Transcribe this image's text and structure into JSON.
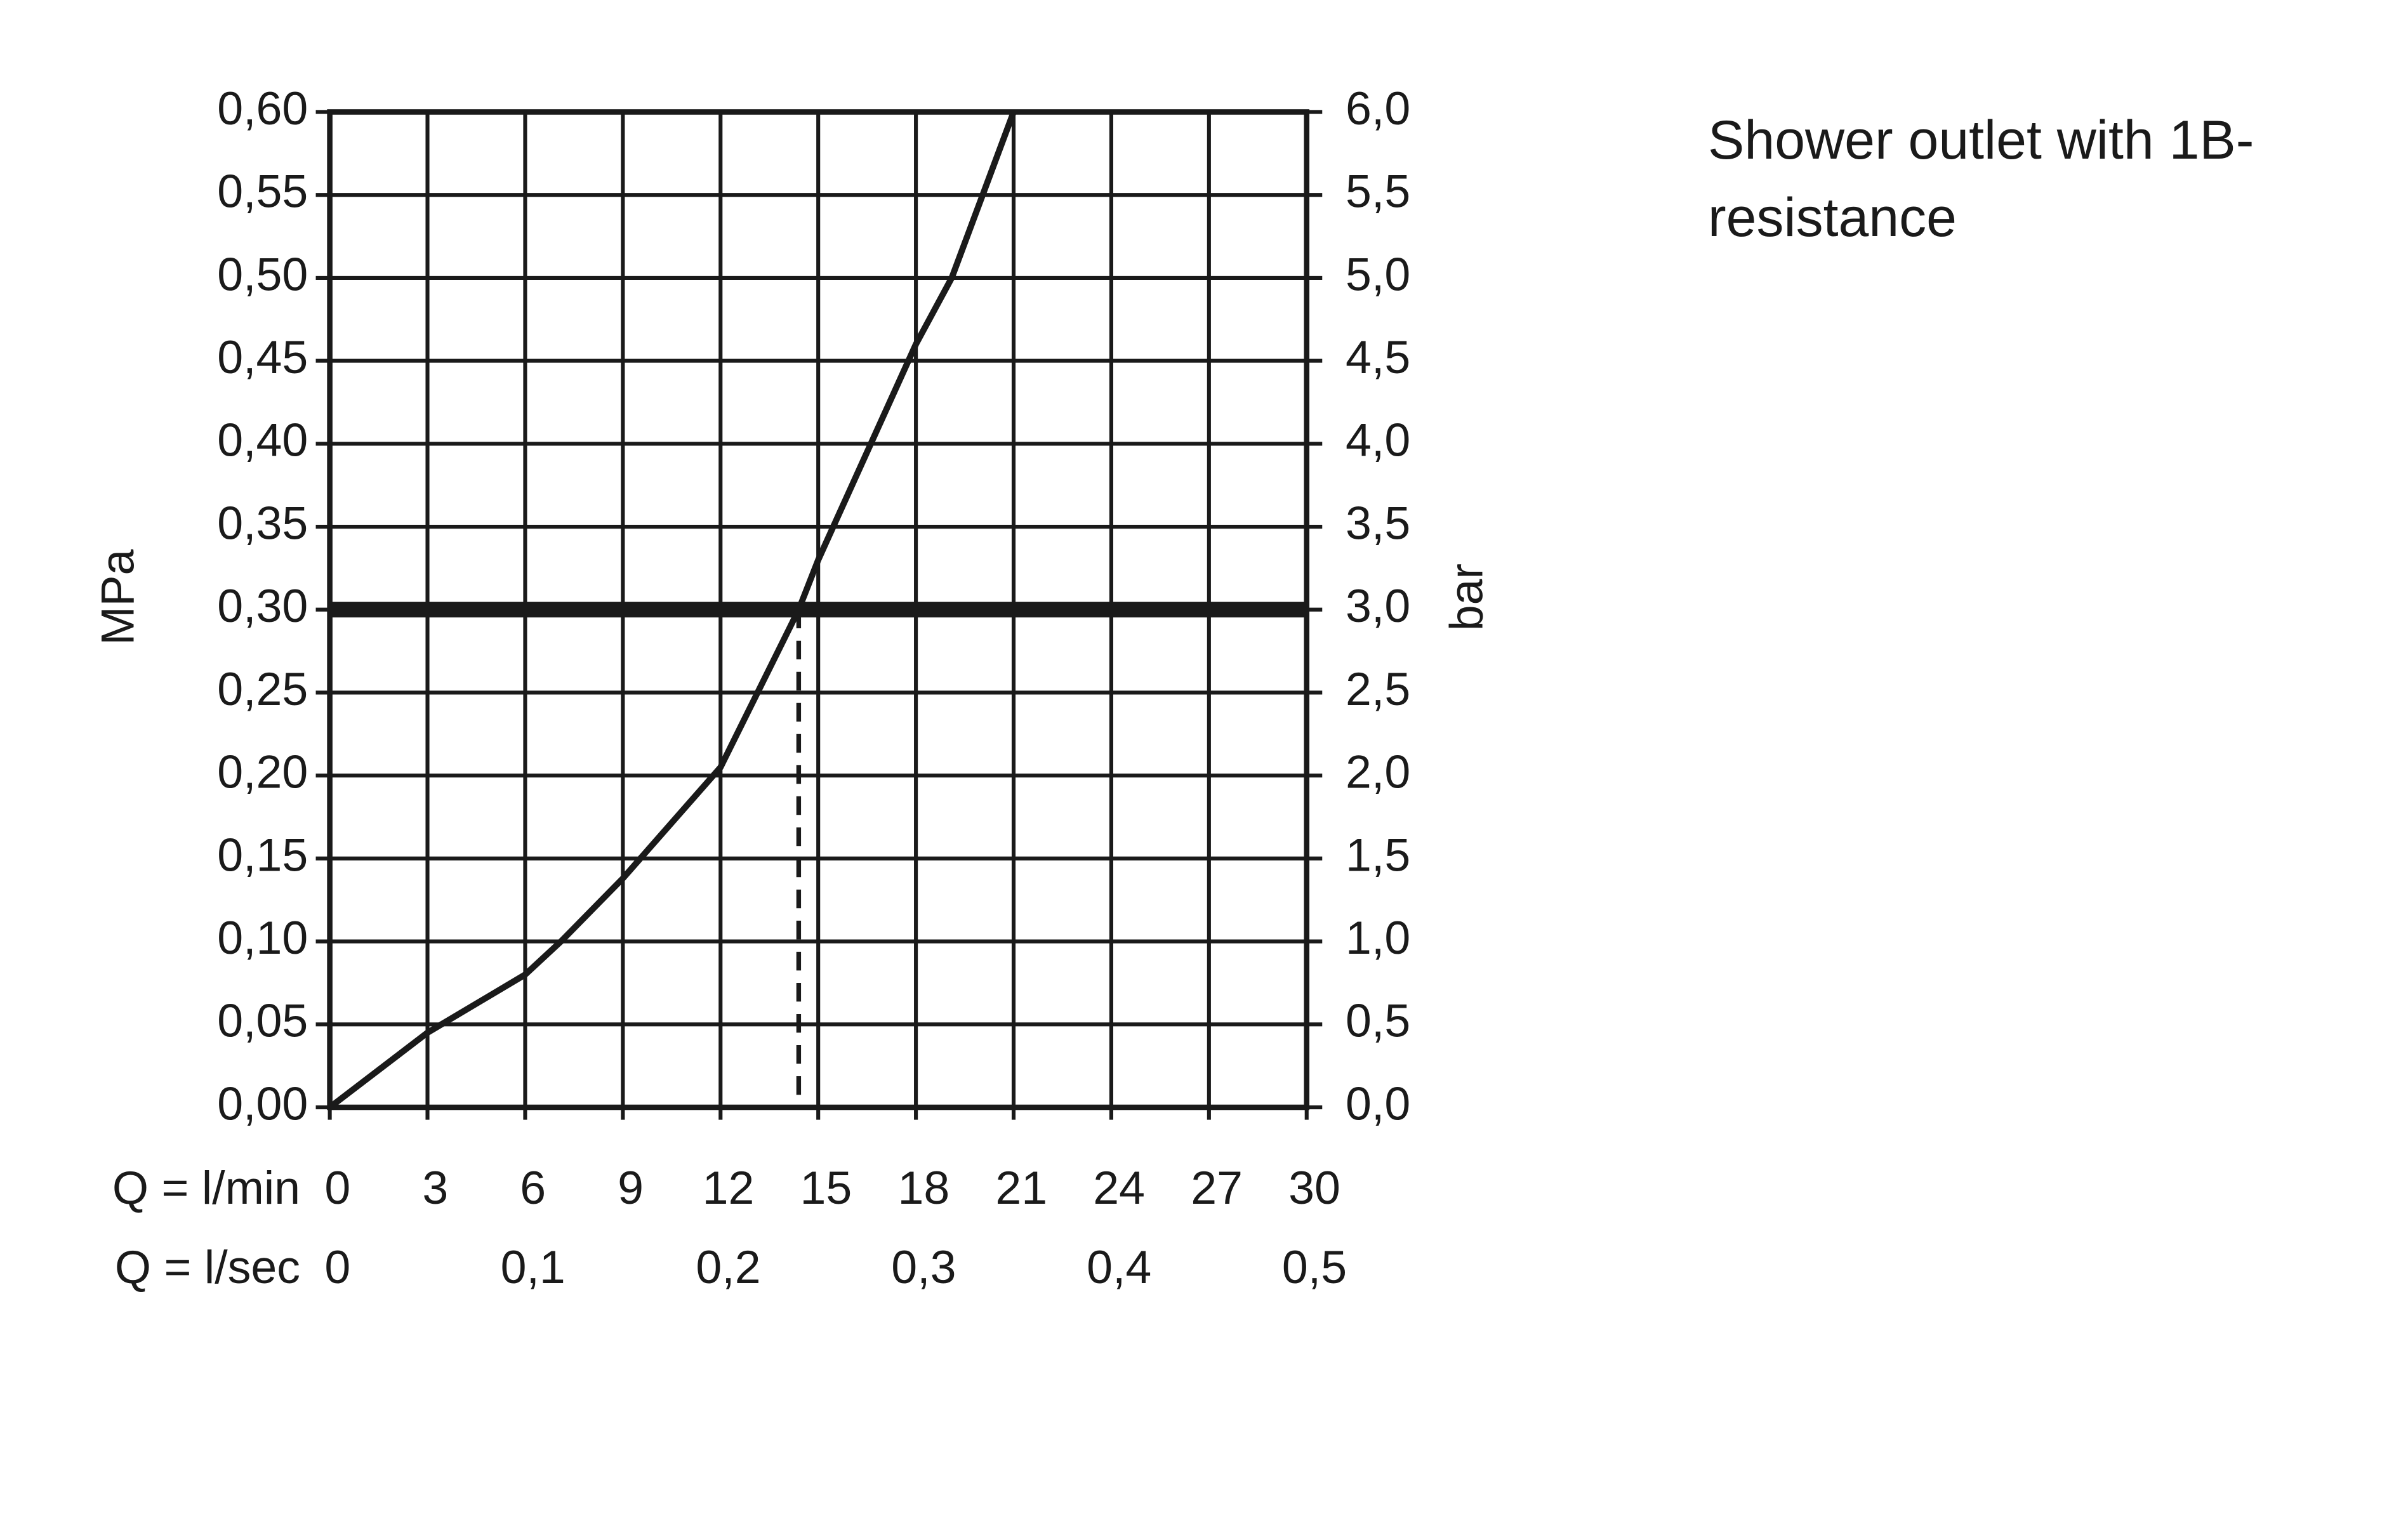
{
  "chart_data": {
    "type": "line",
    "title": "Shower outlet with 1B-resistance",
    "xlabel": "Q = l/min",
    "x2label": "Q = l/sec",
    "ylabel": "MPa",
    "y2label": "bar",
    "x": [
      0,
      3,
      6,
      7.1,
      9,
      12,
      14.4,
      15,
      18,
      19.1,
      21
    ],
    "values": [
      0,
      0.045,
      0.08,
      0.1,
      0.138,
      0.205,
      0.3,
      0.33,
      0.46,
      0.5,
      0.6
    ],
    "color": "#1a1a1a",
    "xlim": [
      0,
      30
    ],
    "xticks": [
      0,
      3,
      6,
      9,
      12,
      15,
      18,
      21,
      24,
      27,
      30
    ],
    "x2lim": [
      0,
      0.5
    ],
    "x2ticks": [
      0,
      {
        "value": 0.1,
        "label": "0,1"
      },
      {
        "value": 0.2,
        "label": "0,2"
      },
      {
        "value": 0.3,
        "label": "0,3"
      },
      {
        "value": 0.4,
        "label": "0,4"
      },
      {
        "value": 0.5,
        "label": "0,5"
      }
    ],
    "ylim": [
      0,
      0.6
    ],
    "yticks": [
      {
        "value": 0,
        "label": "0,00"
      },
      {
        "value": 0.05,
        "label": "0,05"
      },
      {
        "value": 0.1,
        "label": "0,10"
      },
      {
        "value": 0.15,
        "label": "0,15"
      },
      {
        "value": 0.2,
        "label": "0,20"
      },
      {
        "value": 0.25,
        "label": "0,25"
      },
      {
        "value": 0.3,
        "label": "0,30"
      },
      {
        "value": 0.35,
        "label": "0,35"
      },
      {
        "value": 0.4,
        "label": "0,40"
      },
      {
        "value": 0.45,
        "label": "0,45"
      },
      {
        "value": 0.5,
        "label": "0,50"
      },
      {
        "value": 0.55,
        "label": "0,55"
      },
      {
        "value": 0.6,
        "label": "0,60"
      }
    ],
    "y2lim": [
      0,
      6
    ],
    "y2ticks": [
      {
        "value": 0,
        "label": "0,0"
      },
      {
        "value": 0.5,
        "label": "0,5"
      },
      {
        "value": 1,
        "label": "1,0"
      },
      {
        "value": 1.5,
        "label": "1,5"
      },
      {
        "value": 2,
        "label": "2,0"
      },
      {
        "value": 2.5,
        "label": "2,5"
      },
      {
        "value": 3,
        "label": "3,0"
      },
      {
        "value": 3.5,
        "label": "3,5"
      },
      {
        "value": 4,
        "label": "4,0"
      },
      {
        "value": 4.5,
        "label": "4,5"
      },
      {
        "value": 5,
        "label": "5,0"
      },
      {
        "value": 5.5,
        "label": "5,5"
      },
      {
        "value": 6,
        "label": "6,0"
      }
    ],
    "reference_y": 0.3,
    "marker_x": 14.4,
    "grid": true
  }
}
